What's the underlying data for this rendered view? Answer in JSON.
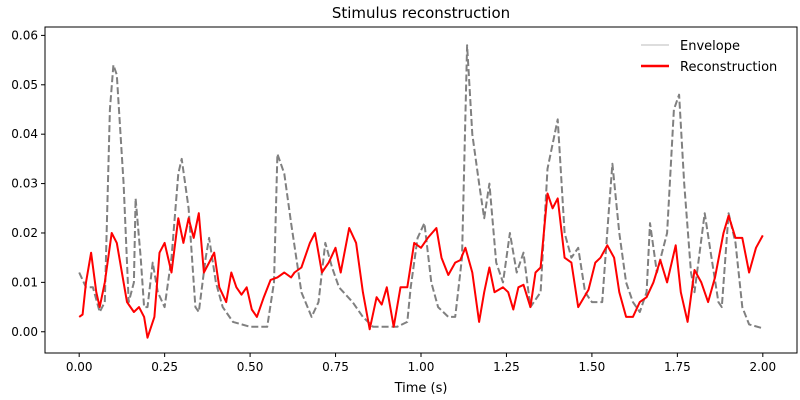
{
  "chart_data": {
    "type": "line",
    "title": "Stimulus reconstruction",
    "xlabel": "Time (s)",
    "ylabel": "",
    "xlim": [
      -0.1,
      2.1
    ],
    "ylim": [
      -0.0043,
      0.0617
    ],
    "xticks": [
      "0.00",
      "0.25",
      "0.50",
      "0.75",
      "1.00",
      "1.25",
      "1.50",
      "1.75",
      "2.00"
    ],
    "yticks": [
      "0.00",
      "0.01",
      "0.02",
      "0.03",
      "0.04",
      "0.05",
      "0.06"
    ],
    "grid": false,
    "legend_position": "top-right",
    "series": [
      {
        "name": "Envelope",
        "color": "#808080",
        "legend_color": "#dddddd",
        "style": "dashed",
        "points": [
          [
            0,
            0.012
          ],
          [
            0.02,
            0.009
          ],
          [
            0.04,
            0.009
          ],
          [
            0.06,
            0.004
          ],
          [
            0.075,
            0.006
          ],
          [
            0.09,
            0.045
          ],
          [
            0.1,
            0.054
          ],
          [
            0.11,
            0.052
          ],
          [
            0.13,
            0.03
          ],
          [
            0.145,
            0.006
          ],
          [
            0.16,
            0.01
          ],
          [
            0.165,
            0.027
          ],
          [
            0.18,
            0.015
          ],
          [
            0.19,
            0.005
          ],
          [
            0.2,
            0.005
          ],
          [
            0.215,
            0.014
          ],
          [
            0.23,
            0.008
          ],
          [
            0.25,
            0.005
          ],
          [
            0.27,
            0.015
          ],
          [
            0.29,
            0.032
          ],
          [
            0.3,
            0.035
          ],
          [
            0.32,
            0.025
          ],
          [
            0.34,
            0.005
          ],
          [
            0.35,
            0.004
          ],
          [
            0.37,
            0.015
          ],
          [
            0.38,
            0.019
          ],
          [
            0.4,
            0.01
          ],
          [
            0.42,
            0.005
          ],
          [
            0.45,
            0.002
          ],
          [
            0.5,
            0.001
          ],
          [
            0.55,
            0.001
          ],
          [
            0.57,
            0.01
          ],
          [
            0.58,
            0.036
          ],
          [
            0.6,
            0.032
          ],
          [
            0.62,
            0.022
          ],
          [
            0.65,
            0.008
          ],
          [
            0.68,
            0.003
          ],
          [
            0.7,
            0.006
          ],
          [
            0.72,
            0.018
          ],
          [
            0.74,
            0.013
          ],
          [
            0.76,
            0.009
          ],
          [
            0.8,
            0.006
          ],
          [
            0.83,
            0.003
          ],
          [
            0.86,
            0.001
          ],
          [
            0.9,
            0.001
          ],
          [
            0.93,
            0.001
          ],
          [
            0.96,
            0.002
          ],
          [
            0.97,
            0.009
          ],
          [
            0.99,
            0.019
          ],
          [
            1.01,
            0.022
          ],
          [
            1.03,
            0.01
          ],
          [
            1.05,
            0.005
          ],
          [
            1.08,
            0.003
          ],
          [
            1.1,
            0.003
          ],
          [
            1.12,
            0.015
          ],
          [
            1.135,
            0.058
          ],
          [
            1.15,
            0.04
          ],
          [
            1.17,
            0.03
          ],
          [
            1.185,
            0.023
          ],
          [
            1.2,
            0.03
          ],
          [
            1.22,
            0.014
          ],
          [
            1.24,
            0.01
          ],
          [
            1.26,
            0.02
          ],
          [
            1.28,
            0.012
          ],
          [
            1.3,
            0.016
          ],
          [
            1.32,
            0.005
          ],
          [
            1.35,
            0.008
          ],
          [
            1.37,
            0.033
          ],
          [
            1.4,
            0.043
          ],
          [
            1.42,
            0.02
          ],
          [
            1.44,
            0.015
          ],
          [
            1.46,
            0.017
          ],
          [
            1.48,
            0.008
          ],
          [
            1.5,
            0.006
          ],
          [
            1.53,
            0.006
          ],
          [
            1.55,
            0.025
          ],
          [
            1.56,
            0.034
          ],
          [
            1.58,
            0.02
          ],
          [
            1.6,
            0.01
          ],
          [
            1.62,
            0.006
          ],
          [
            1.64,
            0.004
          ],
          [
            1.66,
            0.008
          ],
          [
            1.67,
            0.022
          ],
          [
            1.69,
            0.012
          ],
          [
            1.72,
            0.02
          ],
          [
            1.74,
            0.045
          ],
          [
            1.755,
            0.048
          ],
          [
            1.77,
            0.03
          ],
          [
            1.79,
            0.012
          ],
          [
            1.8,
            0.008
          ],
          [
            1.83,
            0.024
          ],
          [
            1.85,
            0.015
          ],
          [
            1.87,
            0.006
          ],
          [
            1.88,
            0.005
          ],
          [
            1.9,
            0.024
          ],
          [
            1.92,
            0.018
          ],
          [
            1.94,
            0.005
          ],
          [
            1.96,
            0.0015
          ],
          [
            2.0,
            0.0007
          ]
        ]
      },
      {
        "name": "Reconstruction",
        "color": "#ff0000",
        "legend_color": "#ff0000",
        "style": "solid",
        "points": [
          [
            0,
            0.003
          ],
          [
            0.01,
            0.0035
          ],
          [
            0.02,
            0.01
          ],
          [
            0.035,
            0.016
          ],
          [
            0.05,
            0.008
          ],
          [
            0.06,
            0.005
          ],
          [
            0.075,
            0.01
          ],
          [
            0.095,
            0.02
          ],
          [
            0.11,
            0.018
          ],
          [
            0.13,
            0.01
          ],
          [
            0.14,
            0.006
          ],
          [
            0.16,
            0.004
          ],
          [
            0.175,
            0.005
          ],
          [
            0.19,
            0.003
          ],
          [
            0.2,
            -0.0012
          ],
          [
            0.22,
            0.003
          ],
          [
            0.235,
            0.016
          ],
          [
            0.25,
            0.018
          ],
          [
            0.27,
            0.012
          ],
          [
            0.29,
            0.023
          ],
          [
            0.305,
            0.018
          ],
          [
            0.32,
            0.023
          ],
          [
            0.335,
            0.019
          ],
          [
            0.35,
            0.024
          ],
          [
            0.365,
            0.012
          ],
          [
            0.38,
            0.014
          ],
          [
            0.395,
            0.016
          ],
          [
            0.41,
            0.009
          ],
          [
            0.43,
            0.006
          ],
          [
            0.445,
            0.012
          ],
          [
            0.46,
            0.009
          ],
          [
            0.475,
            0.0075
          ],
          [
            0.49,
            0.009
          ],
          [
            0.505,
            0.0045
          ],
          [
            0.52,
            0.003
          ],
          [
            0.54,
            0.007
          ],
          [
            0.56,
            0.0105
          ],
          [
            0.58,
            0.011
          ],
          [
            0.6,
            0.012
          ],
          [
            0.62,
            0.011
          ],
          [
            0.63,
            0.012
          ],
          [
            0.65,
            0.013
          ],
          [
            0.675,
            0.018
          ],
          [
            0.69,
            0.02
          ],
          [
            0.71,
            0.012
          ],
          [
            0.73,
            0.014
          ],
          [
            0.75,
            0.017
          ],
          [
            0.765,
            0.012
          ],
          [
            0.79,
            0.021
          ],
          [
            0.81,
            0.018
          ],
          [
            0.83,
            0.008
          ],
          [
            0.85,
            0.0005
          ],
          [
            0.87,
            0.007
          ],
          [
            0.885,
            0.0055
          ],
          [
            0.9,
            0.009
          ],
          [
            0.92,
            0.001
          ],
          [
            0.94,
            0.009
          ],
          [
            0.96,
            0.009
          ],
          [
            0.98,
            0.018
          ],
          [
            1.0,
            0.017
          ],
          [
            1.02,
            0.019
          ],
          [
            1.045,
            0.021
          ],
          [
            1.06,
            0.015
          ],
          [
            1.08,
            0.0115
          ],
          [
            1.1,
            0.014
          ],
          [
            1.115,
            0.0145
          ],
          [
            1.13,
            0.017
          ],
          [
            1.15,
            0.012
          ],
          [
            1.17,
            0.002
          ],
          [
            1.185,
            0.008
          ],
          [
            1.2,
            0.013
          ],
          [
            1.215,
            0.008
          ],
          [
            1.24,
            0.009
          ],
          [
            1.255,
            0.008
          ],
          [
            1.27,
            0.0045
          ],
          [
            1.285,
            0.009
          ],
          [
            1.3,
            0.0095
          ],
          [
            1.32,
            0.005
          ],
          [
            1.335,
            0.012
          ],
          [
            1.35,
            0.013
          ],
          [
            1.37,
            0.028
          ],
          [
            1.385,
            0.025
          ],
          [
            1.4,
            0.027
          ],
          [
            1.42,
            0.015
          ],
          [
            1.44,
            0.014
          ],
          [
            1.46,
            0.005
          ],
          [
            1.49,
            0.0085
          ],
          [
            1.51,
            0.014
          ],
          [
            1.525,
            0.015
          ],
          [
            1.545,
            0.0175
          ],
          [
            1.565,
            0.015
          ],
          [
            1.58,
            0.008
          ],
          [
            1.6,
            0.003
          ],
          [
            1.62,
            0.003
          ],
          [
            1.64,
            0.006
          ],
          [
            1.66,
            0.007
          ],
          [
            1.68,
            0.01
          ],
          [
            1.7,
            0.0145
          ],
          [
            1.72,
            0.01
          ],
          [
            1.745,
            0.0175
          ],
          [
            1.76,
            0.008
          ],
          [
            1.78,
            0.002
          ],
          [
            1.8,
            0.0125
          ],
          [
            1.82,
            0.01
          ],
          [
            1.84,
            0.006
          ],
          [
            1.86,
            0.011
          ],
          [
            1.885,
            0.02
          ],
          [
            1.9,
            0.0235
          ],
          [
            1.92,
            0.019
          ],
          [
            1.94,
            0.019
          ],
          [
            1.96,
            0.012
          ],
          [
            1.98,
            0.017
          ],
          [
            2.0,
            0.0195
          ]
        ]
      }
    ]
  }
}
